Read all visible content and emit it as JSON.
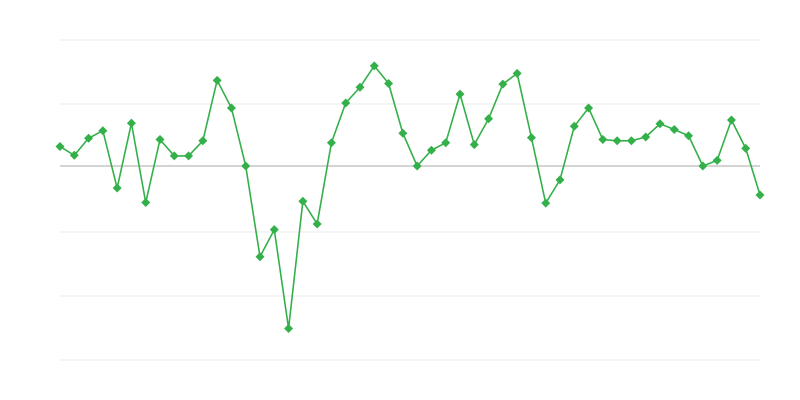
{
  "chart_data": {
    "type": "line",
    "title": "",
    "xlabel": "",
    "ylabel": "",
    "ylim": [
      -3,
      2
    ],
    "grid": true,
    "legend": "none",
    "series_color": "#34b04a",
    "x": [
      1,
      2,
      3,
      4,
      5,
      6,
      7,
      8,
      9,
      10,
      11,
      12,
      13,
      14,
      15,
      16,
      17,
      18,
      19,
      20,
      21,
      22,
      23,
      24,
      25,
      26,
      27,
      28,
      29,
      30,
      31,
      32,
      33,
      34,
      35,
      36,
      37,
      38,
      39,
      40,
      41,
      42,
      43,
      44,
      45,
      46,
      47,
      48,
      49,
      50
    ],
    "values": [
      0.31,
      0.17,
      0.44,
      0.56,
      -0.35,
      0.68,
      -0.58,
      0.42,
      0.16,
      0.16,
      0.4,
      1.36,
      0.92,
      0.0,
      -1.44,
      -1.01,
      -2.58,
      -0.56,
      -0.92,
      0.37,
      1.0,
      1.25,
      1.59,
      1.31,
      0.52,
      0.0,
      0.25,
      0.37,
      1.14,
      0.34,
      0.75,
      1.3,
      1.47,
      0.45,
      -0.59,
      -0.22,
      0.63,
      0.92,
      0.42,
      0.4,
      0.4,
      0.46,
      0.67,
      0.58,
      0.48,
      0.0,
      0.09,
      0.73,
      0.28,
      -0.46
    ]
  }
}
